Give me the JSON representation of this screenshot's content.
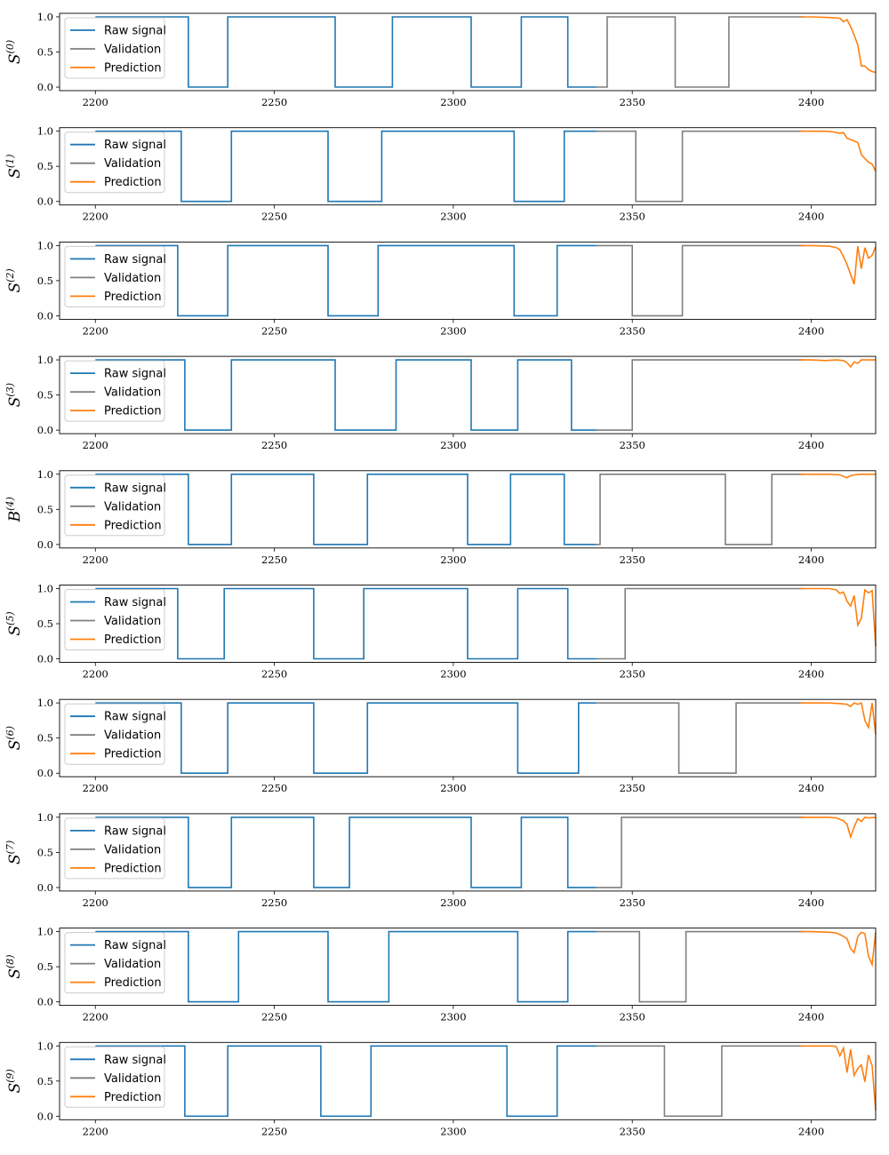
{
  "legend_labels": {
    "raw": "Raw signal",
    "val": "Validation",
    "pred": "Prediction"
  },
  "colors": {
    "raw": "#1f77b4",
    "val": "#7f7f7f",
    "pred": "#ff7f0e"
  },
  "chart_data": [
    {
      "type": "line",
      "ylabel": "S",
      "ylabel_sup": "(0)",
      "xlim": [
        2190,
        2418
      ],
      "ylim": [
        -0.05,
        1.05
      ],
      "xticks": [
        "2200",
        "2250",
        "2300",
        "2350",
        "2400"
      ],
      "yticks": [
        "0.0",
        "0.5",
        "1.0"
      ],
      "legend": "upper-left",
      "series": [
        {
          "name": "Raw signal",
          "x": [
            2200,
            2226,
            2226,
            2237,
            2237,
            2267,
            2267,
            2283,
            2283,
            2305,
            2305,
            2319,
            2319,
            2332,
            2332,
            2340
          ],
          "y": [
            1,
            1,
            0,
            0,
            1,
            1,
            0,
            0,
            1,
            1,
            0,
            0,
            1,
            1,
            0,
            0
          ]
        },
        {
          "name": "Validation",
          "x": [
            2340,
            2343,
            2343,
            2362,
            2362,
            2377,
            2377,
            2398
          ],
          "y": [
            0,
            0,
            1,
            1,
            0,
            0,
            1,
            1
          ]
        },
        {
          "name": "Prediction",
          "x": [
            2397,
            2400,
            2405,
            2408,
            2409,
            2410,
            2411,
            2412,
            2413,
            2414,
            2415,
            2416,
            2417,
            2418
          ],
          "y": [
            1,
            1,
            0.99,
            0.98,
            0.93,
            0.96,
            0.86,
            0.74,
            0.6,
            0.3,
            0.3,
            0.25,
            0.22,
            0.21
          ]
        }
      ]
    },
    {
      "type": "line",
      "ylabel": "S",
      "ylabel_sup": "(1)",
      "xlim": [
        2190,
        2418
      ],
      "ylim": [
        -0.05,
        1.05
      ],
      "xticks": [
        "2200",
        "2250",
        "2300",
        "2350",
        "2400"
      ],
      "yticks": [
        "0.0",
        "0.5",
        "1.0"
      ],
      "legend": "upper-left",
      "series": [
        {
          "name": "Raw signal",
          "x": [
            2200,
            2224,
            2224,
            2238,
            2238,
            2265,
            2265,
            2280,
            2280,
            2317,
            2317,
            2331,
            2331,
            2340
          ],
          "y": [
            1,
            1,
            0,
            0,
            1,
            1,
            0,
            0,
            1,
            1,
            0,
            0,
            1,
            1
          ]
        },
        {
          "name": "Validation",
          "x": [
            2340,
            2351,
            2351,
            2364,
            2364,
            2398
          ],
          "y": [
            1,
            1,
            0,
            0,
            1,
            1
          ]
        },
        {
          "name": "Prediction",
          "x": [
            2397,
            2400,
            2404,
            2406,
            2408,
            2409,
            2410,
            2411,
            2412,
            2413,
            2414,
            2415,
            2416,
            2417,
            2418
          ],
          "y": [
            1,
            1,
            1,
            0.99,
            0.97,
            0.98,
            0.9,
            0.88,
            0.86,
            0.84,
            0.67,
            0.61,
            0.56,
            0.53,
            0.43
          ]
        }
      ]
    },
    {
      "type": "line",
      "ylabel": "S",
      "ylabel_sup": "(2)",
      "xlim": [
        2190,
        2418
      ],
      "ylim": [
        -0.05,
        1.05
      ],
      "xticks": [
        "2200",
        "2250",
        "2300",
        "2350",
        "2400"
      ],
      "yticks": [
        "0.0",
        "0.5",
        "1.0"
      ],
      "legend": "upper-left",
      "series": [
        {
          "name": "Raw signal",
          "x": [
            2200,
            2223,
            2223,
            2237,
            2237,
            2265,
            2265,
            2279,
            2279,
            2317,
            2317,
            2329,
            2329,
            2340
          ],
          "y": [
            1,
            1,
            0,
            0,
            1,
            1,
            0,
            0,
            1,
            1,
            0,
            0,
            1,
            1
          ]
        },
        {
          "name": "Validation",
          "x": [
            2340,
            2350,
            2350,
            2364,
            2364,
            2398
          ],
          "y": [
            1,
            1,
            0,
            0,
            1,
            1
          ]
        },
        {
          "name": "Prediction",
          "x": [
            2397,
            2400,
            2405,
            2407,
            2408,
            2409,
            2410,
            2411,
            2412,
            2413,
            2414,
            2415,
            2416,
            2417,
            2418
          ],
          "y": [
            1,
            1,
            0.99,
            0.97,
            0.94,
            0.84,
            0.73,
            0.59,
            0.45,
            0.99,
            0.67,
            0.97,
            0.82,
            0.86,
            0.98
          ]
        }
      ]
    },
    {
      "type": "line",
      "ylabel": "S",
      "ylabel_sup": "(3)",
      "xlim": [
        2190,
        2418
      ],
      "ylim": [
        -0.05,
        1.05
      ],
      "xticks": [
        "2200",
        "2250",
        "2300",
        "2350",
        "2400"
      ],
      "yticks": [
        "0.0",
        "0.5",
        "1.0"
      ],
      "legend": "upper-left",
      "series": [
        {
          "name": "Raw signal",
          "x": [
            2200,
            2225,
            2225,
            2238,
            2238,
            2267,
            2267,
            2284,
            2284,
            2305,
            2305,
            2318,
            2318,
            2333,
            2333,
            2340
          ],
          "y": [
            1,
            1,
            0,
            0,
            1,
            1,
            0,
            0,
            1,
            1,
            0,
            0,
            1,
            1,
            0,
            0
          ]
        },
        {
          "name": "Validation",
          "x": [
            2340,
            2350,
            2350,
            2398
          ],
          "y": [
            0,
            0,
            1,
            1
          ]
        },
        {
          "name": "Prediction",
          "x": [
            2397,
            2400,
            2404,
            2407,
            2409,
            2410,
            2411,
            2412,
            2413,
            2414,
            2416,
            2418
          ],
          "y": [
            1,
            1,
            0.99,
            1,
            0.99,
            0.96,
            0.9,
            0.97,
            0.95,
            1,
            1,
            1
          ]
        }
      ]
    },
    {
      "type": "line",
      "ylabel": "B",
      "ylabel_sup": "(4)",
      "xlim": [
        2190,
        2418
      ],
      "ylim": [
        -0.05,
        1.05
      ],
      "xticks": [
        "2200",
        "2250",
        "2300",
        "2350",
        "2400"
      ],
      "yticks": [
        "0.0",
        "0.5",
        "1.0"
      ],
      "legend": "upper-left",
      "series": [
        {
          "name": "Raw signal",
          "x": [
            2200,
            2226,
            2226,
            2238,
            2238,
            2261,
            2261,
            2276,
            2276,
            2304,
            2304,
            2316,
            2316,
            2331,
            2331,
            2340
          ],
          "y": [
            1,
            1,
            0,
            0,
            1,
            1,
            0,
            0,
            1,
            1,
            0,
            0,
            1,
            1,
            0,
            0
          ]
        },
        {
          "name": "Validation",
          "x": [
            2340,
            2341,
            2341,
            2376,
            2376,
            2389,
            2389,
            2398
          ],
          "y": [
            0,
            0,
            1,
            1,
            0,
            0,
            1,
            1
          ]
        },
        {
          "name": "Prediction",
          "x": [
            2397,
            2400,
            2405,
            2408,
            2409,
            2410,
            2411,
            2412,
            2414,
            2418
          ],
          "y": [
            1,
            1,
            1,
            0.99,
            0.97,
            0.95,
            0.98,
            0.99,
            1,
            1
          ]
        }
      ]
    },
    {
      "type": "line",
      "ylabel": "S",
      "ylabel_sup": "(5)",
      "xlim": [
        2190,
        2418
      ],
      "ylim": [
        -0.05,
        1.05
      ],
      "xticks": [
        "2200",
        "2250",
        "2300",
        "2350",
        "2400"
      ],
      "yticks": [
        "0.0",
        "0.5",
        "1.0"
      ],
      "legend": "upper-left",
      "series": [
        {
          "name": "Raw signal",
          "x": [
            2200,
            2223,
            2223,
            2236,
            2236,
            2261,
            2261,
            2275,
            2275,
            2304,
            2304,
            2318,
            2318,
            2332,
            2332,
            2340
          ],
          "y": [
            1,
            1,
            0,
            0,
            1,
            1,
            0,
            0,
            1,
            1,
            0,
            0,
            1,
            1,
            0,
            0
          ]
        },
        {
          "name": "Validation",
          "x": [
            2340,
            2348,
            2348,
            2398
          ],
          "y": [
            0,
            0,
            1,
            1
          ]
        },
        {
          "name": "Prediction",
          "x": [
            2397,
            2400,
            2405,
            2407,
            2408,
            2409,
            2410,
            2411,
            2412,
            2413,
            2414,
            2415,
            2416,
            2417,
            2418
          ],
          "y": [
            1,
            1,
            1,
            0.98,
            0.93,
            0.95,
            0.82,
            0.75,
            0.9,
            0.48,
            0.58,
            0.98,
            0.94,
            0.97,
            0.18
          ]
        }
      ]
    },
    {
      "type": "line",
      "ylabel": "S",
      "ylabel_sup": "(6)",
      "xlim": [
        2190,
        2418
      ],
      "ylim": [
        -0.05,
        1.05
      ],
      "xticks": [
        "2200",
        "2250",
        "2300",
        "2350",
        "2400"
      ],
      "yticks": [
        "0.0",
        "0.5",
        "1.0"
      ],
      "legend": "upper-left",
      "series": [
        {
          "name": "Raw signal",
          "x": [
            2200,
            2224,
            2224,
            2237,
            2237,
            2261,
            2261,
            2276,
            2276,
            2318,
            2318,
            2335,
            2335,
            2340
          ],
          "y": [
            1,
            1,
            0,
            0,
            1,
            1,
            0,
            0,
            1,
            1,
            0,
            0,
            1,
            1
          ]
        },
        {
          "name": "Validation",
          "x": [
            2340,
            2363,
            2363,
            2379,
            2379,
            2398
          ],
          "y": [
            1,
            1,
            0,
            0,
            1,
            1
          ]
        },
        {
          "name": "Prediction",
          "x": [
            2397,
            2400,
            2405,
            2408,
            2410,
            2411,
            2412,
            2413,
            2414,
            2415,
            2416,
            2417,
            2418
          ],
          "y": [
            1,
            1,
            1,
            0.99,
            0.98,
            0.95,
            1,
            0.98,
            1,
            0.75,
            0.65,
            1,
            0.55
          ]
        }
      ]
    },
    {
      "type": "line",
      "ylabel": "S",
      "ylabel_sup": "(7)",
      "xlim": [
        2190,
        2418
      ],
      "ylim": [
        -0.05,
        1.05
      ],
      "xticks": [
        "2200",
        "2250",
        "2300",
        "2350",
        "2400"
      ],
      "yticks": [
        "0.0",
        "0.5",
        "1.0"
      ],
      "legend": "upper-left",
      "series": [
        {
          "name": "Raw signal",
          "x": [
            2200,
            2226,
            2226,
            2238,
            2238,
            2261,
            2261,
            2271,
            2271,
            2305,
            2305,
            2319,
            2319,
            2332,
            2332,
            2340
          ],
          "y": [
            1,
            1,
            0,
            0,
            1,
            1,
            0,
            0,
            1,
            1,
            0,
            0,
            1,
            1,
            0,
            0
          ]
        },
        {
          "name": "Validation",
          "x": [
            2340,
            2347,
            2347,
            2398
          ],
          "y": [
            0,
            0,
            1,
            1
          ]
        },
        {
          "name": "Prediction",
          "x": [
            2397,
            2400,
            2405,
            2407,
            2409,
            2410,
            2411,
            2412,
            2413,
            2414,
            2415,
            2416,
            2418
          ],
          "y": [
            1,
            1,
            1,
            0.99,
            0.95,
            0.9,
            0.72,
            0.86,
            0.98,
            0.94,
            1,
            0.99,
            1
          ]
        }
      ]
    },
    {
      "type": "line",
      "ylabel": "S",
      "ylabel_sup": "(8)",
      "xlim": [
        2190,
        2418
      ],
      "ylim": [
        -0.05,
        1.05
      ],
      "xticks": [
        "2200",
        "2250",
        "2300",
        "2350",
        "2400"
      ],
      "yticks": [
        "0.0",
        "0.5",
        "1.0"
      ],
      "legend": "upper-left",
      "series": [
        {
          "name": "Raw signal",
          "x": [
            2200,
            2226,
            2226,
            2240,
            2240,
            2265,
            2265,
            2282,
            2282,
            2318,
            2318,
            2332,
            2332,
            2340
          ],
          "y": [
            1,
            1,
            0,
            0,
            1,
            1,
            0,
            0,
            1,
            1,
            0,
            0,
            1,
            1
          ]
        },
        {
          "name": "Validation",
          "x": [
            2340,
            2352,
            2352,
            2365,
            2365,
            2398
          ],
          "y": [
            1,
            1,
            0,
            0,
            1,
            1
          ]
        },
        {
          "name": "Prediction",
          "x": [
            2397,
            2400,
            2405,
            2407,
            2408,
            2409,
            2410,
            2411,
            2412,
            2413,
            2414,
            2415,
            2416,
            2417,
            2418
          ],
          "y": [
            1,
            1,
            0.99,
            0.98,
            0.96,
            0.93,
            0.9,
            0.76,
            0.7,
            0.93,
            0.99,
            0.97,
            0.65,
            0.53,
            0.99
          ]
        }
      ]
    },
    {
      "type": "line",
      "ylabel": "S",
      "ylabel_sup": "(9)",
      "xlim": [
        2190,
        2418
      ],
      "ylim": [
        -0.05,
        1.05
      ],
      "xticks": [
        "2200",
        "2250",
        "2300",
        "2350",
        "2400"
      ],
      "yticks": [
        "0.0",
        "0.5",
        "1.0"
      ],
      "legend": "upper-left",
      "series": [
        {
          "name": "Raw signal",
          "x": [
            2200,
            2225,
            2225,
            2237,
            2237,
            2263,
            2263,
            2277,
            2277,
            2315,
            2315,
            2329,
            2329,
            2340
          ],
          "y": [
            1,
            1,
            0,
            0,
            1,
            1,
            0,
            0,
            1,
            1,
            0,
            0,
            1,
            1
          ]
        },
        {
          "name": "Validation",
          "x": [
            2340,
            2359,
            2359,
            2375,
            2375,
            2398
          ],
          "y": [
            1,
            1,
            0,
            0,
            1,
            1
          ]
        },
        {
          "name": "Prediction",
          "x": [
            2397,
            2400,
            2404,
            2406,
            2407,
            2408,
            2409,
            2410,
            2411,
            2412,
            2413,
            2414,
            2415,
            2416,
            2417,
            2418
          ],
          "y": [
            1,
            1,
            1,
            1,
            0.99,
            0.86,
            0.97,
            0.62,
            0.95,
            0.58,
            0.68,
            0.73,
            0.49,
            0.87,
            0.72,
            0.08
          ]
        }
      ]
    }
  ]
}
